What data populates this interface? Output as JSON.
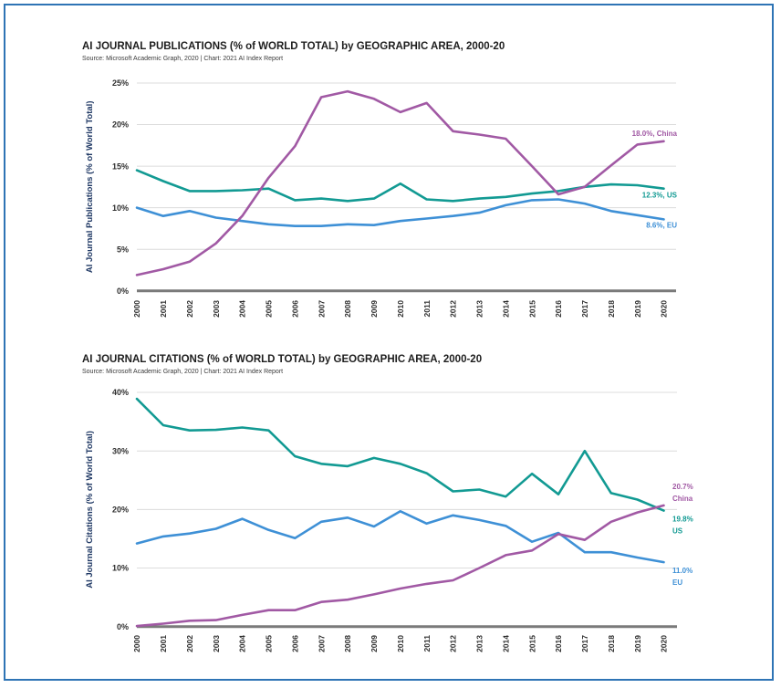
{
  "page": {
    "background_color": "#FFFFFF",
    "border_color": "#2E74B5"
  },
  "chart_data": [
    {
      "type": "line",
      "title": "AI JOURNAL PUBLICATIONS (% of WORLD TOTAL) by GEOGRAPHIC AREA, 2000-20",
      "subtitle": "Source: Microsoft Academic Graph, 2020 | Chart: 2021 AI Index Report",
      "ylabel": "AI Journal Publications (% of World Total)",
      "xlabel": "",
      "x": [
        "2000",
        "2001",
        "2002",
        "2003",
        "2004",
        "2005",
        "2006",
        "2007",
        "2008",
        "2009",
        "2010",
        "2011",
        "2012",
        "2013",
        "2014",
        "2015",
        "2016",
        "2017",
        "2018",
        "2019",
        "2020"
      ],
      "ylim": [
        0,
        25
      ],
      "yticks": [
        0,
        5,
        10,
        15,
        20,
        25
      ],
      "grid": true,
      "legend_position": "line-end-labels",
      "series": [
        {
          "name": "China",
          "color": "#A159A4",
          "end_label_lines": [
            "18.0%, China"
          ],
          "values": [
            1.9,
            2.6,
            3.5,
            5.7,
            9.0,
            13.6,
            17.4,
            23.3,
            24.0,
            23.1,
            21.5,
            22.6,
            19.2,
            18.8,
            18.3,
            15.0,
            11.6,
            12.5,
            15.1,
            17.6,
            18.0
          ]
        },
        {
          "name": "US",
          "color": "#129A93",
          "end_label_lines": [
            "12.3%, US"
          ],
          "values": [
            14.5,
            13.2,
            12.0,
            12.0,
            12.1,
            12.3,
            10.9,
            11.1,
            10.8,
            11.1,
            12.9,
            11.0,
            10.8,
            11.1,
            11.3,
            11.7,
            12.0,
            12.5,
            12.8,
            12.7,
            12.3
          ]
        },
        {
          "name": "EU",
          "color": "#3E90D6",
          "end_label_lines": [
            "8.6%, EU"
          ],
          "values": [
            10.0,
            9.0,
            9.6,
            8.8,
            8.4,
            8.0,
            7.8,
            7.8,
            8.0,
            7.9,
            8.4,
            8.7,
            9.0,
            9.4,
            10.3,
            10.9,
            11.0,
            10.5,
            9.6,
            9.1,
            8.6
          ]
        }
      ]
    },
    {
      "type": "line",
      "title": "AI JOURNAL CITATIONS (% of WORLD TOTAL) by GEOGRAPHIC AREA, 2000-20",
      "subtitle": "Source: Microsoft Academic Graph, 2020 | Chart: 2021 AI Index Report",
      "ylabel": "AI Journal Citations (% of World Total)",
      "xlabel": "",
      "x": [
        "2000",
        "2001",
        "2002",
        "2003",
        "2004",
        "2005",
        "2006",
        "2007",
        "2008",
        "2009",
        "2010",
        "2011",
        "2012",
        "2013",
        "2014",
        "2015",
        "2016",
        "2017",
        "2018",
        "2019",
        "2020"
      ],
      "ylim": [
        0,
        40
      ],
      "yticks": [
        0,
        10,
        20,
        30,
        40
      ],
      "grid": true,
      "legend_position": "line-end-labels",
      "series": [
        {
          "name": "China",
          "color": "#A159A4",
          "end_label_lines": [
            "20.7%",
            "China"
          ],
          "values": [
            0.1,
            0.5,
            1.0,
            1.1,
            2.0,
            2.8,
            2.8,
            4.2,
            4.6,
            5.5,
            6.5,
            7.3,
            7.9,
            10.0,
            12.2,
            13.0,
            15.8,
            14.8,
            17.9,
            19.5,
            20.7
          ]
        },
        {
          "name": "US",
          "color": "#129A93",
          "end_label_lines": [
            "19.8%",
            "US"
          ],
          "values": [
            38.9,
            34.4,
            33.5,
            33.6,
            34.0,
            33.5,
            29.1,
            27.8,
            27.4,
            28.8,
            27.8,
            26.2,
            23.1,
            23.4,
            22.2,
            26.1,
            22.6,
            30.0,
            22.8,
            21.7,
            19.8
          ]
        },
        {
          "name": "EU",
          "color": "#3E90D6",
          "end_label_lines": [
            "11.0%",
            "EU"
          ],
          "values": [
            14.2,
            15.4,
            15.9,
            16.7,
            18.4,
            16.5,
            15.1,
            17.9,
            18.6,
            17.1,
            19.7,
            17.6,
            19.0,
            18.2,
            17.2,
            14.5,
            16.0,
            12.7,
            12.7,
            11.8,
            11.0
          ]
        }
      ]
    }
  ]
}
